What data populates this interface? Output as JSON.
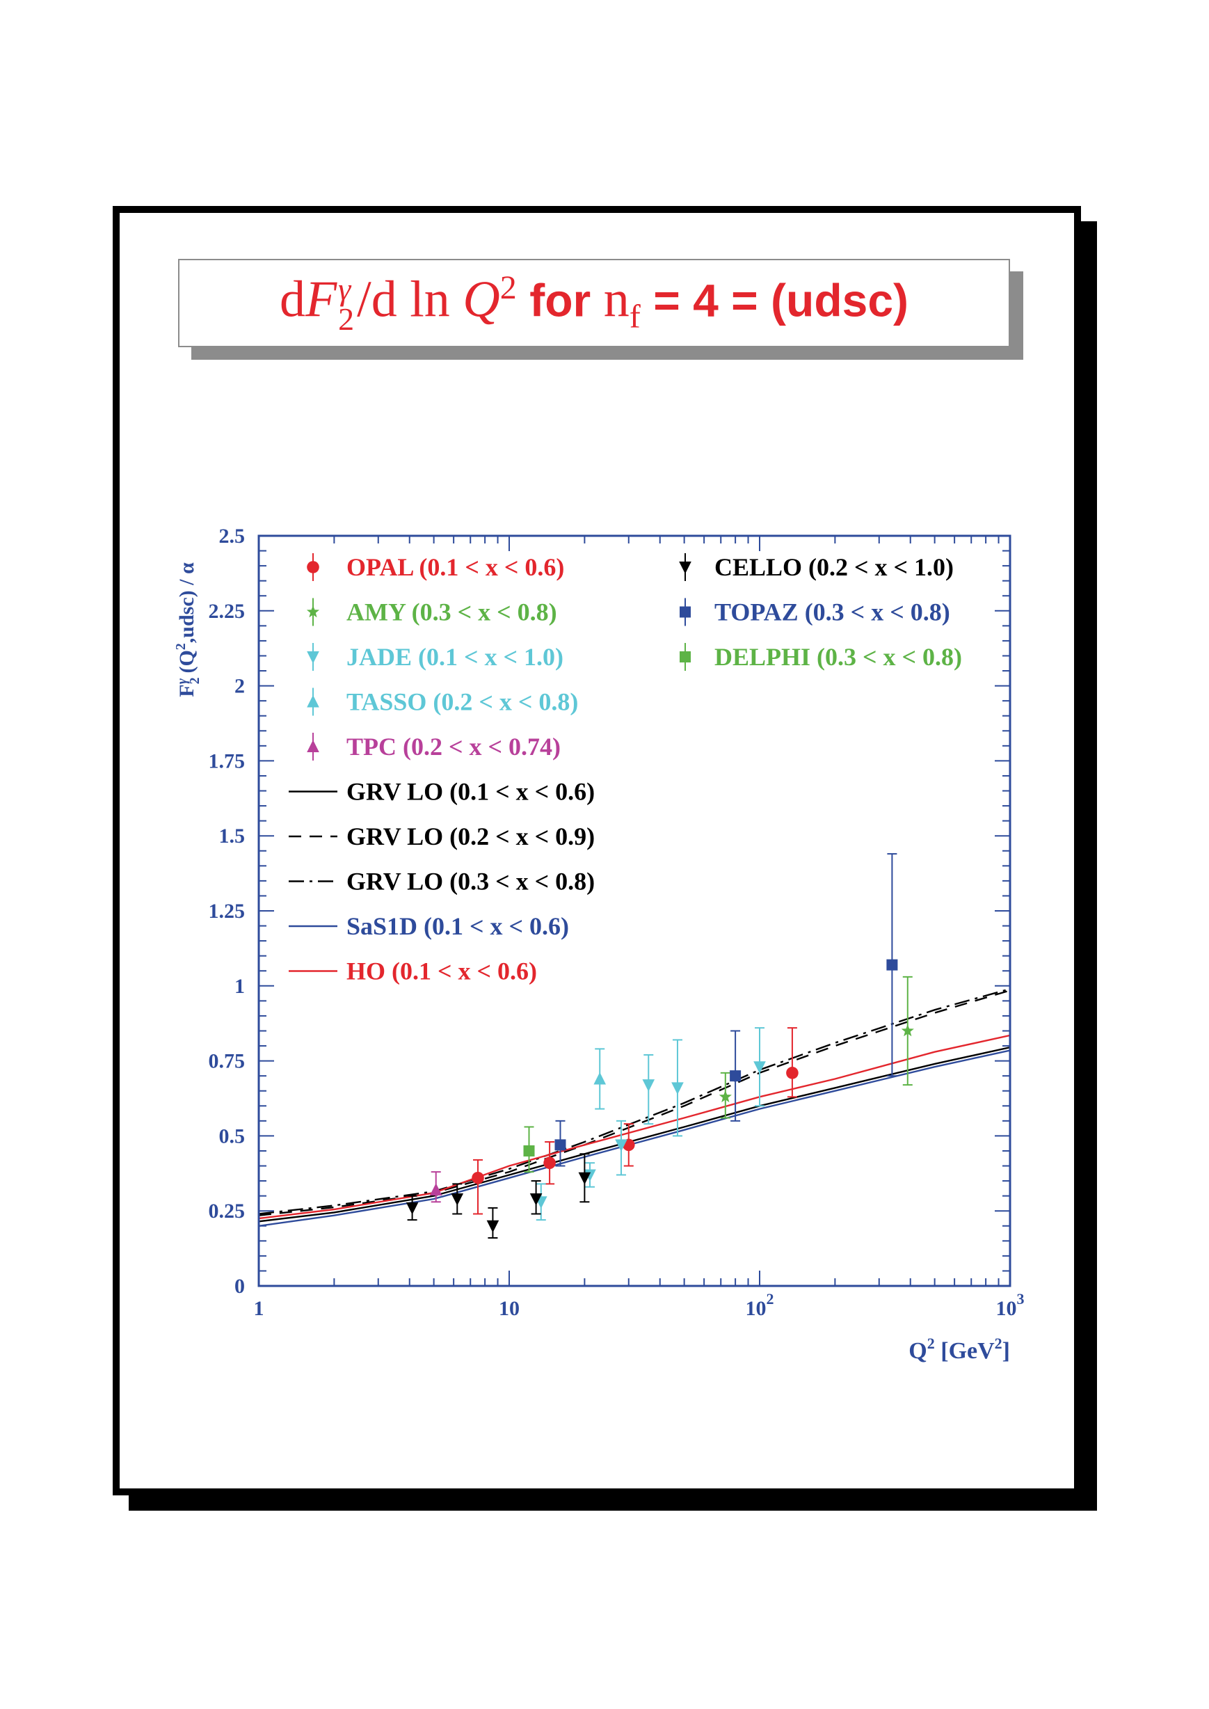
{
  "title": {
    "d1": "d",
    "F": "F",
    "sup_gamma": "γ",
    "sub_2": "2",
    "slash_d": "/d",
    "ln": "ln",
    "Q": "Q",
    "sup_2": "2",
    "for_label": "for",
    "n": "n",
    "sub_f": "f",
    "rest": "= 4 = (udsc)"
  },
  "colors": {
    "title": "#e3262d",
    "axis": "#2e4b9b",
    "opal": "#e3262d",
    "amy": "#5db346",
    "jade": "#5ec7d6",
    "tasso": "#5ec7d6",
    "tpc": "#b8409a",
    "cello": "#000000",
    "topaz": "#2e4b9b",
    "delphi": "#5db346",
    "grv": "#000000",
    "sas": "#2e4b9b",
    "ho": "#e3262d"
  },
  "chart_data": {
    "type": "scatter",
    "xscale": "log",
    "xlim": [
      1,
      1000
    ],
    "ylim": [
      0,
      2.5
    ],
    "ylabel": "F₂^γ (Q²,udsc) / α",
    "xlabel": "Q² [GeV²]",
    "x_ticks": [
      {
        "value": 1,
        "base": "1",
        "exp": ""
      },
      {
        "value": 10,
        "base": "10",
        "exp": ""
      },
      {
        "value": 100,
        "base": "10",
        "exp": "2"
      },
      {
        "value": 1000,
        "base": "10",
        "exp": "3"
      }
    ],
    "y_ticks": [
      "0",
      "0.25",
      "0.5",
      "0.75",
      "1",
      "1.25",
      "1.5",
      "1.75",
      "2",
      "2.25",
      "2.5"
    ],
    "grid": false,
    "legend_position": "top-left",
    "series": [
      {
        "name": "OPAL (0.1 < x < 0.6)",
        "color_key": "opal",
        "marker": "circle",
        "points": [
          {
            "x": 7.5,
            "y": 0.36,
            "lo": 0.24,
            "hi": 0.42
          },
          {
            "x": 14.5,
            "y": 0.41,
            "lo": 0.34,
            "hi": 0.48
          },
          {
            "x": 30,
            "y": 0.47,
            "lo": 0.4,
            "hi": 0.54
          },
          {
            "x": 135,
            "y": 0.71,
            "lo": 0.63,
            "hi": 0.86
          }
        ]
      },
      {
        "name": "AMY (0.3 < x < 0.8)",
        "color_key": "amy",
        "marker": "star",
        "points": [
          {
            "x": 73,
            "y": 0.63,
            "lo": 0.56,
            "hi": 0.71
          },
          {
            "x": 390,
            "y": 0.85,
            "lo": 0.67,
            "hi": 1.03
          }
        ]
      },
      {
        "name": "JADE (0.1 < x < 1.0)",
        "color_key": "jade",
        "marker": "tri-down",
        "points": [
          {
            "x": 13.4,
            "y": 0.28,
            "lo": 0.22,
            "hi": 0.34
          },
          {
            "x": 21,
            "y": 0.37,
            "lo": 0.33,
            "hi": 0.41
          },
          {
            "x": 28,
            "y": 0.47,
            "lo": 0.37,
            "hi": 0.55
          },
          {
            "x": 36,
            "y": 0.67,
            "lo": 0.54,
            "hi": 0.77
          },
          {
            "x": 47,
            "y": 0.66,
            "lo": 0.5,
            "hi": 0.82
          },
          {
            "x": 100,
            "y": 0.73,
            "lo": 0.6,
            "hi": 0.86
          }
        ]
      },
      {
        "name": "TASSO (0.2 < x < 0.8)",
        "color_key": "tasso",
        "marker": "tri-up",
        "points": [
          {
            "x": 23,
            "y": 0.69,
            "lo": 0.59,
            "hi": 0.79
          }
        ]
      },
      {
        "name": "TPC (0.2 < x < 0.74)",
        "color_key": "tpc",
        "marker": "tri-up",
        "points": [
          {
            "x": 5.1,
            "y": 0.32,
            "lo": 0.28,
            "hi": 0.38
          }
        ]
      },
      {
        "name": "CELLO (0.2 < x < 1.0)",
        "color_key": "cello",
        "marker": "tri-down",
        "points": [
          {
            "x": 4.1,
            "y": 0.26,
            "lo": 0.22,
            "hi": 0.3
          },
          {
            "x": 6.2,
            "y": 0.29,
            "lo": 0.24,
            "hi": 0.34
          },
          {
            "x": 8.6,
            "y": 0.2,
            "lo": 0.16,
            "hi": 0.26
          },
          {
            "x": 12.8,
            "y": 0.29,
            "lo": 0.24,
            "hi": 0.35
          },
          {
            "x": 20,
            "y": 0.36,
            "lo": 0.28,
            "hi": 0.44
          }
        ]
      },
      {
        "name": "TOPAZ (0.3 < x < 0.8)",
        "color_key": "topaz",
        "marker": "square",
        "points": [
          {
            "x": 16,
            "y": 0.47,
            "lo": 0.4,
            "hi": 0.55
          },
          {
            "x": 80,
            "y": 0.7,
            "lo": 0.55,
            "hi": 0.85
          },
          {
            "x": 338,
            "y": 1.07,
            "lo": 0.7,
            "hi": 1.44
          }
        ]
      },
      {
        "name": "DELPHI (0.3 < x < 0.8)",
        "color_key": "delphi",
        "marker": "square",
        "points": [
          {
            "x": 12,
            "y": 0.45,
            "lo": 0.38,
            "hi": 0.53
          }
        ]
      }
    ],
    "curves": [
      {
        "name": "GRV LO (0.1 < x < 0.6)",
        "color_key": "grv",
        "dash": "solid",
        "x": [
          1,
          2,
          5,
          10,
          20,
          50,
          100,
          200,
          500,
          1000
        ],
        "y": [
          0.215,
          0.245,
          0.3,
          0.37,
          0.44,
          0.53,
          0.6,
          0.66,
          0.74,
          0.795
        ]
      },
      {
        "name": "GRV LO (0.2 < x < 0.9)",
        "color_key": "grv",
        "dash": "dashed",
        "x": [
          1,
          2,
          5,
          10,
          20,
          50,
          100,
          200,
          500,
          1000
        ],
        "y": [
          0.235,
          0.262,
          0.31,
          0.38,
          0.47,
          0.6,
          0.71,
          0.8,
          0.91,
          0.985
        ]
      },
      {
        "name": "GRV LO (0.3 < x < 0.8)",
        "color_key": "grv",
        "dash": "dashdot",
        "x": [
          1,
          2,
          5,
          10,
          20,
          50,
          100,
          200,
          500,
          1000
        ],
        "y": [
          0.24,
          0.268,
          0.315,
          0.39,
          0.48,
          0.61,
          0.72,
          0.81,
          0.92,
          0.99
        ]
      },
      {
        "name": "SaS1D (0.1 < x < 0.6)",
        "color_key": "sas",
        "dash": "solid",
        "x": [
          1,
          2,
          5,
          10,
          20,
          50,
          100,
          200,
          500,
          1000
        ],
        "y": [
          0.2,
          0.235,
          0.29,
          0.36,
          0.43,
          0.52,
          0.59,
          0.65,
          0.73,
          0.785
        ]
      },
      {
        "name": "HO (0.1 < x < 0.6)",
        "color_key": "ho",
        "dash": "solid",
        "x": [
          1,
          2,
          5,
          10,
          20,
          50,
          100,
          200,
          500,
          1000
        ],
        "y": [
          0.225,
          0.255,
          0.31,
          0.4,
          0.47,
          0.56,
          0.63,
          0.69,
          0.78,
          0.835
        ]
      }
    ],
    "legend_left": [
      "OPAL (0.1 < x < 0.6)",
      "AMY (0.3 < x < 0.8)",
      "JADE (0.1 < x < 1.0)",
      "TASSO (0.2 < x < 0.8)",
      "TPC (0.2 < x < 0.74)",
      "GRV LO (0.1 < x < 0.6)",
      "GRV LO (0.2 < x < 0.9)",
      "GRV LO (0.3 < x < 0.8)",
      "SaS1D (0.1 < x < 0.6)",
      "HO (0.1 < x < 0.6)"
    ],
    "legend_right": [
      "CELLO (0.2 < x < 1.0)",
      "TOPAZ (0.3 < x < 0.8)",
      "DELPHI (0.3 < x < 0.8)"
    ]
  }
}
